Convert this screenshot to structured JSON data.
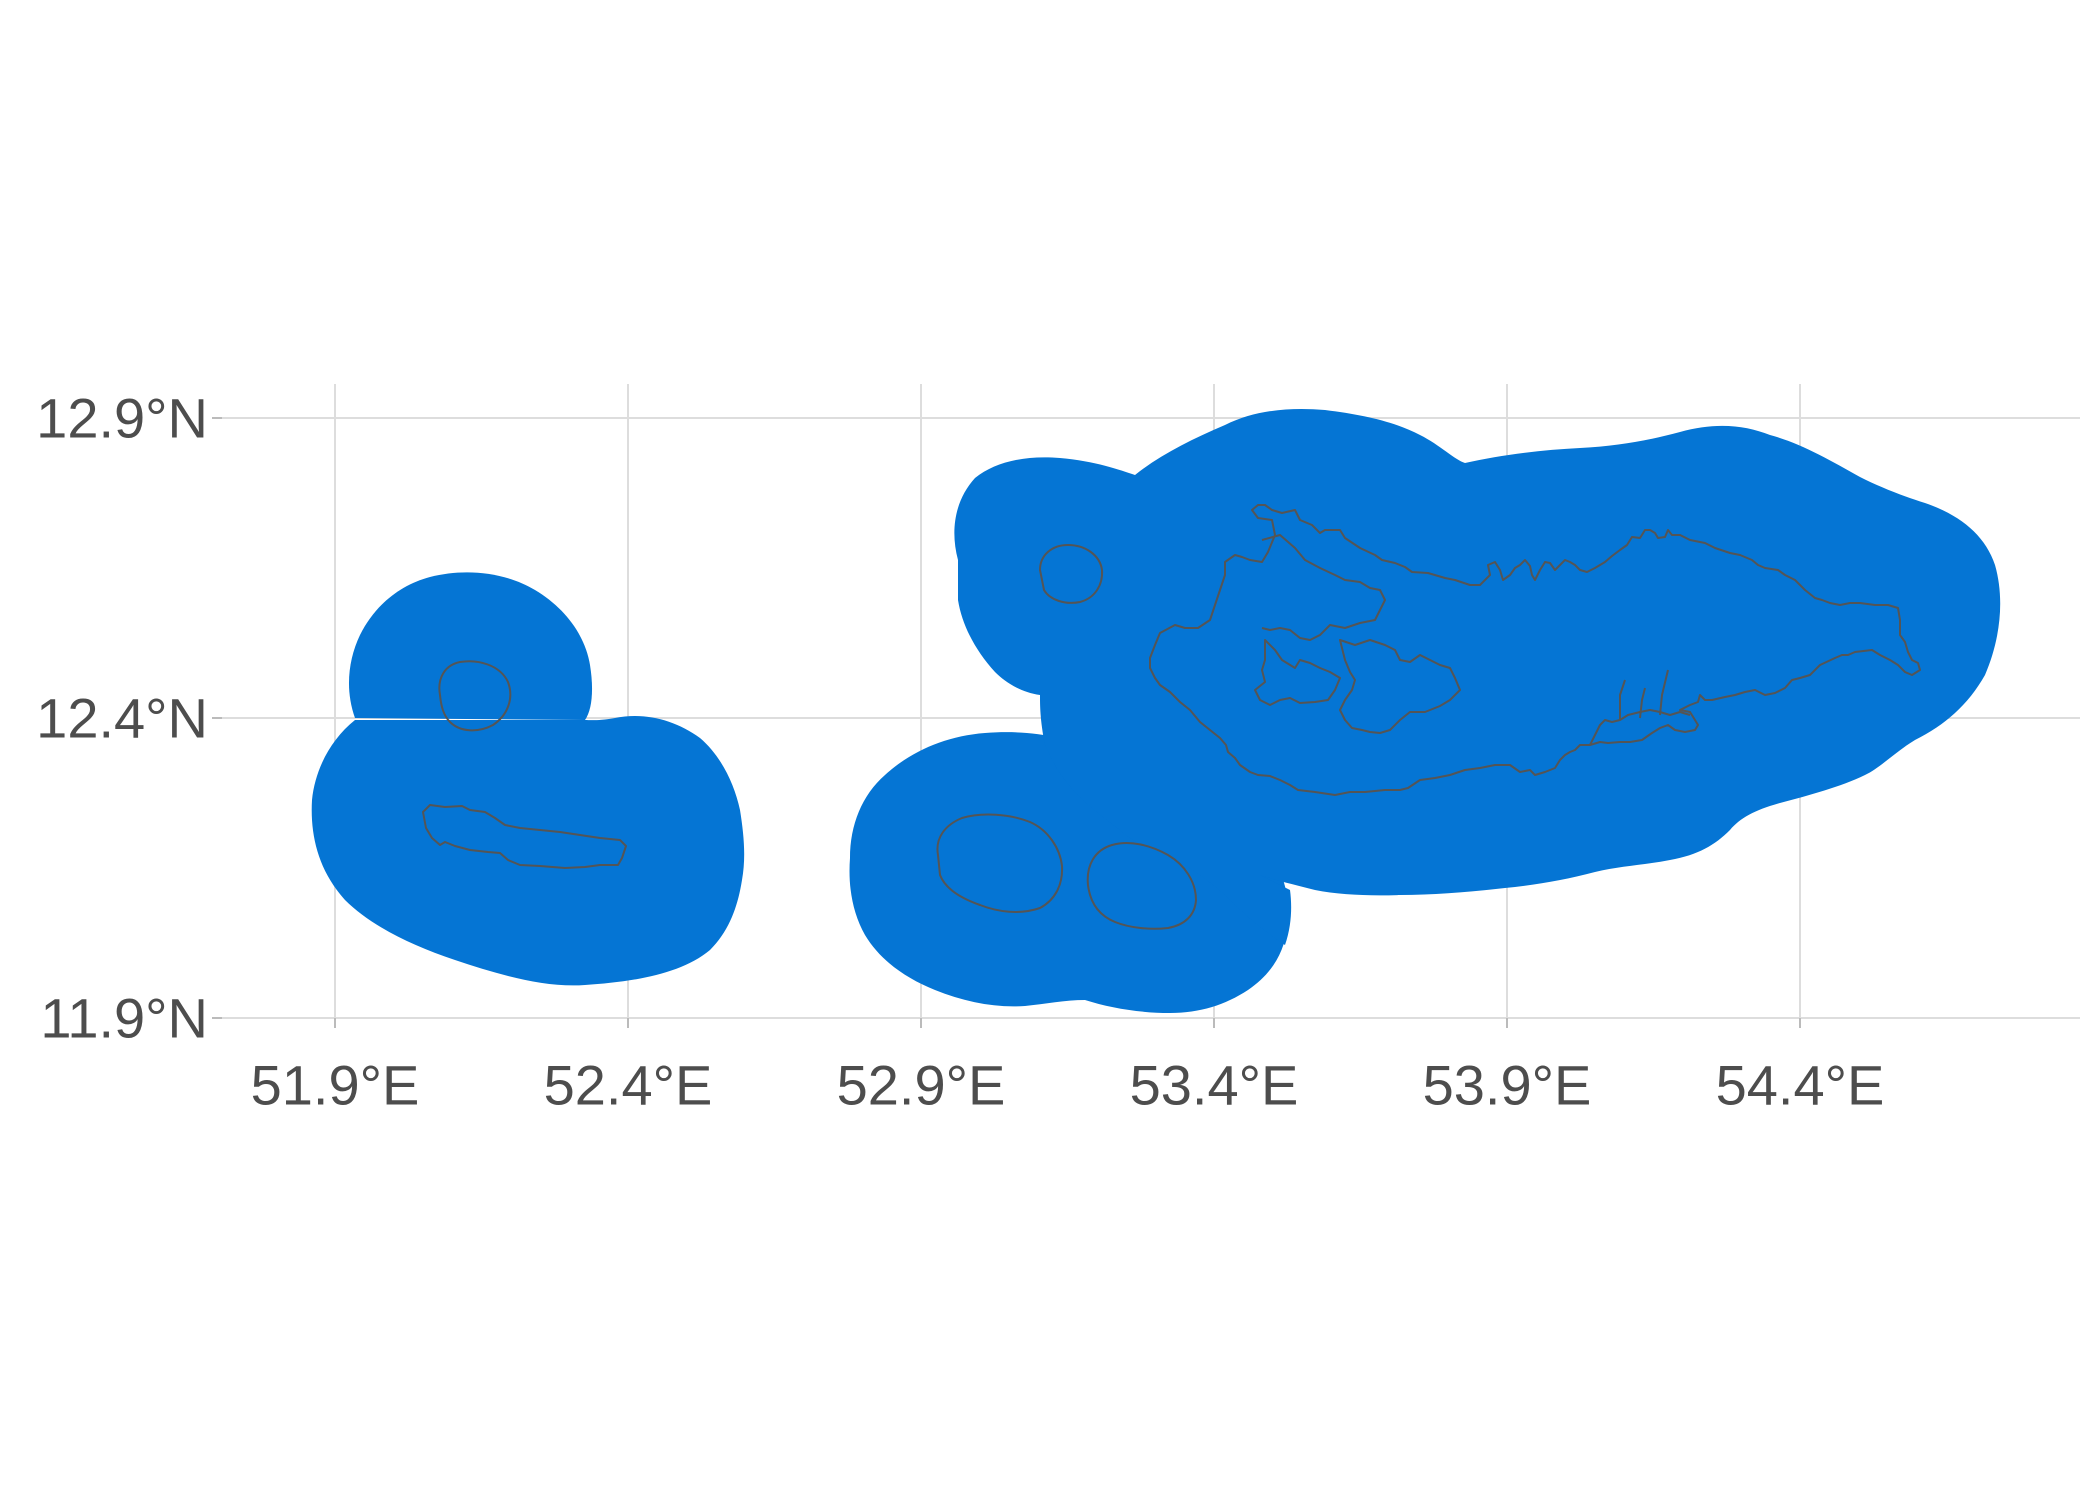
{
  "map": {
    "buffer_color": "#0575d4",
    "outline_color": "#555555",
    "grid_color": "#dddddd",
    "x_axis": {
      "ticks": [
        "51.9°E",
        "52.4°E",
        "52.9°E",
        "53.4°E",
        "53.9°E",
        "54.4°E"
      ]
    },
    "y_axis": {
      "ticks": [
        "12.9°N",
        "12.4°N",
        "11.9°N"
      ]
    }
  }
}
